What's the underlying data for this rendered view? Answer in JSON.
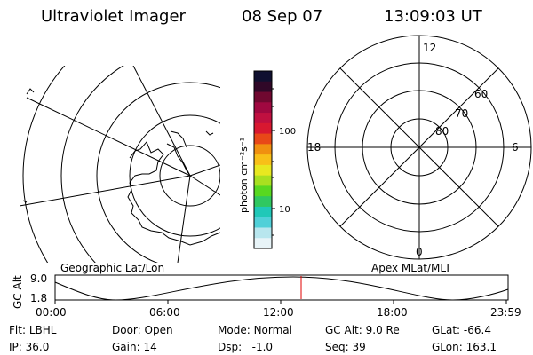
{
  "header": {
    "instrument": "Ultraviolet Imager",
    "date": "08 Sep 07",
    "time": "13:09:03 UT"
  },
  "left_map": {
    "label": "Geographic Lat/Lon"
  },
  "right_map": {
    "label": "Apex MLat/MLT",
    "mlt_labels": [
      "12",
      "18",
      "6",
      "0"
    ],
    "lat_labels": [
      "60",
      "70",
      "80"
    ]
  },
  "colorbar": {
    "unit_label": "photon cm⁻²s⁻¹",
    "ticks": [
      "100",
      "10"
    ],
    "colors": [
      "#e8f4f8",
      "#b8e6ee",
      "#50d0d8",
      "#20c8b8",
      "#30c860",
      "#58d820",
      "#a8e020",
      "#e8e820",
      "#f8c018",
      "#f09010",
      "#e84818",
      "#d81830",
      "#c01040",
      "#a00840",
      "#700830",
      "#300828",
      "#101030"
    ]
  },
  "altitude_plot": {
    "ylabel": "GC Alt",
    "y_ticks": [
      "9.0",
      "1.8"
    ],
    "x_ticks": [
      "00:00",
      "06:00",
      "12:00",
      "18:00",
      "23:59"
    ],
    "marker_color": "#e00000"
  },
  "status": {
    "row1": [
      {
        "label": "Flt:",
        "value": "LBHL"
      },
      {
        "label": "Door:",
        "value": "Open"
      },
      {
        "label": "Mode:",
        "value": "Normal"
      },
      {
        "label": "GC Alt:",
        "value": "9.0 Re"
      },
      {
        "label": "GLat:",
        "value": "-66.4"
      }
    ],
    "row2": [
      {
        "label": "IP:",
        "value": "36.0"
      },
      {
        "label": "Gain:",
        "value": "14"
      },
      {
        "label": "Dsp:",
        "value": "  -1.0"
      },
      {
        "label": "Seq:",
        "value": "39"
      },
      {
        "label": "GLon:",
        "value": "163.1"
      }
    ]
  }
}
